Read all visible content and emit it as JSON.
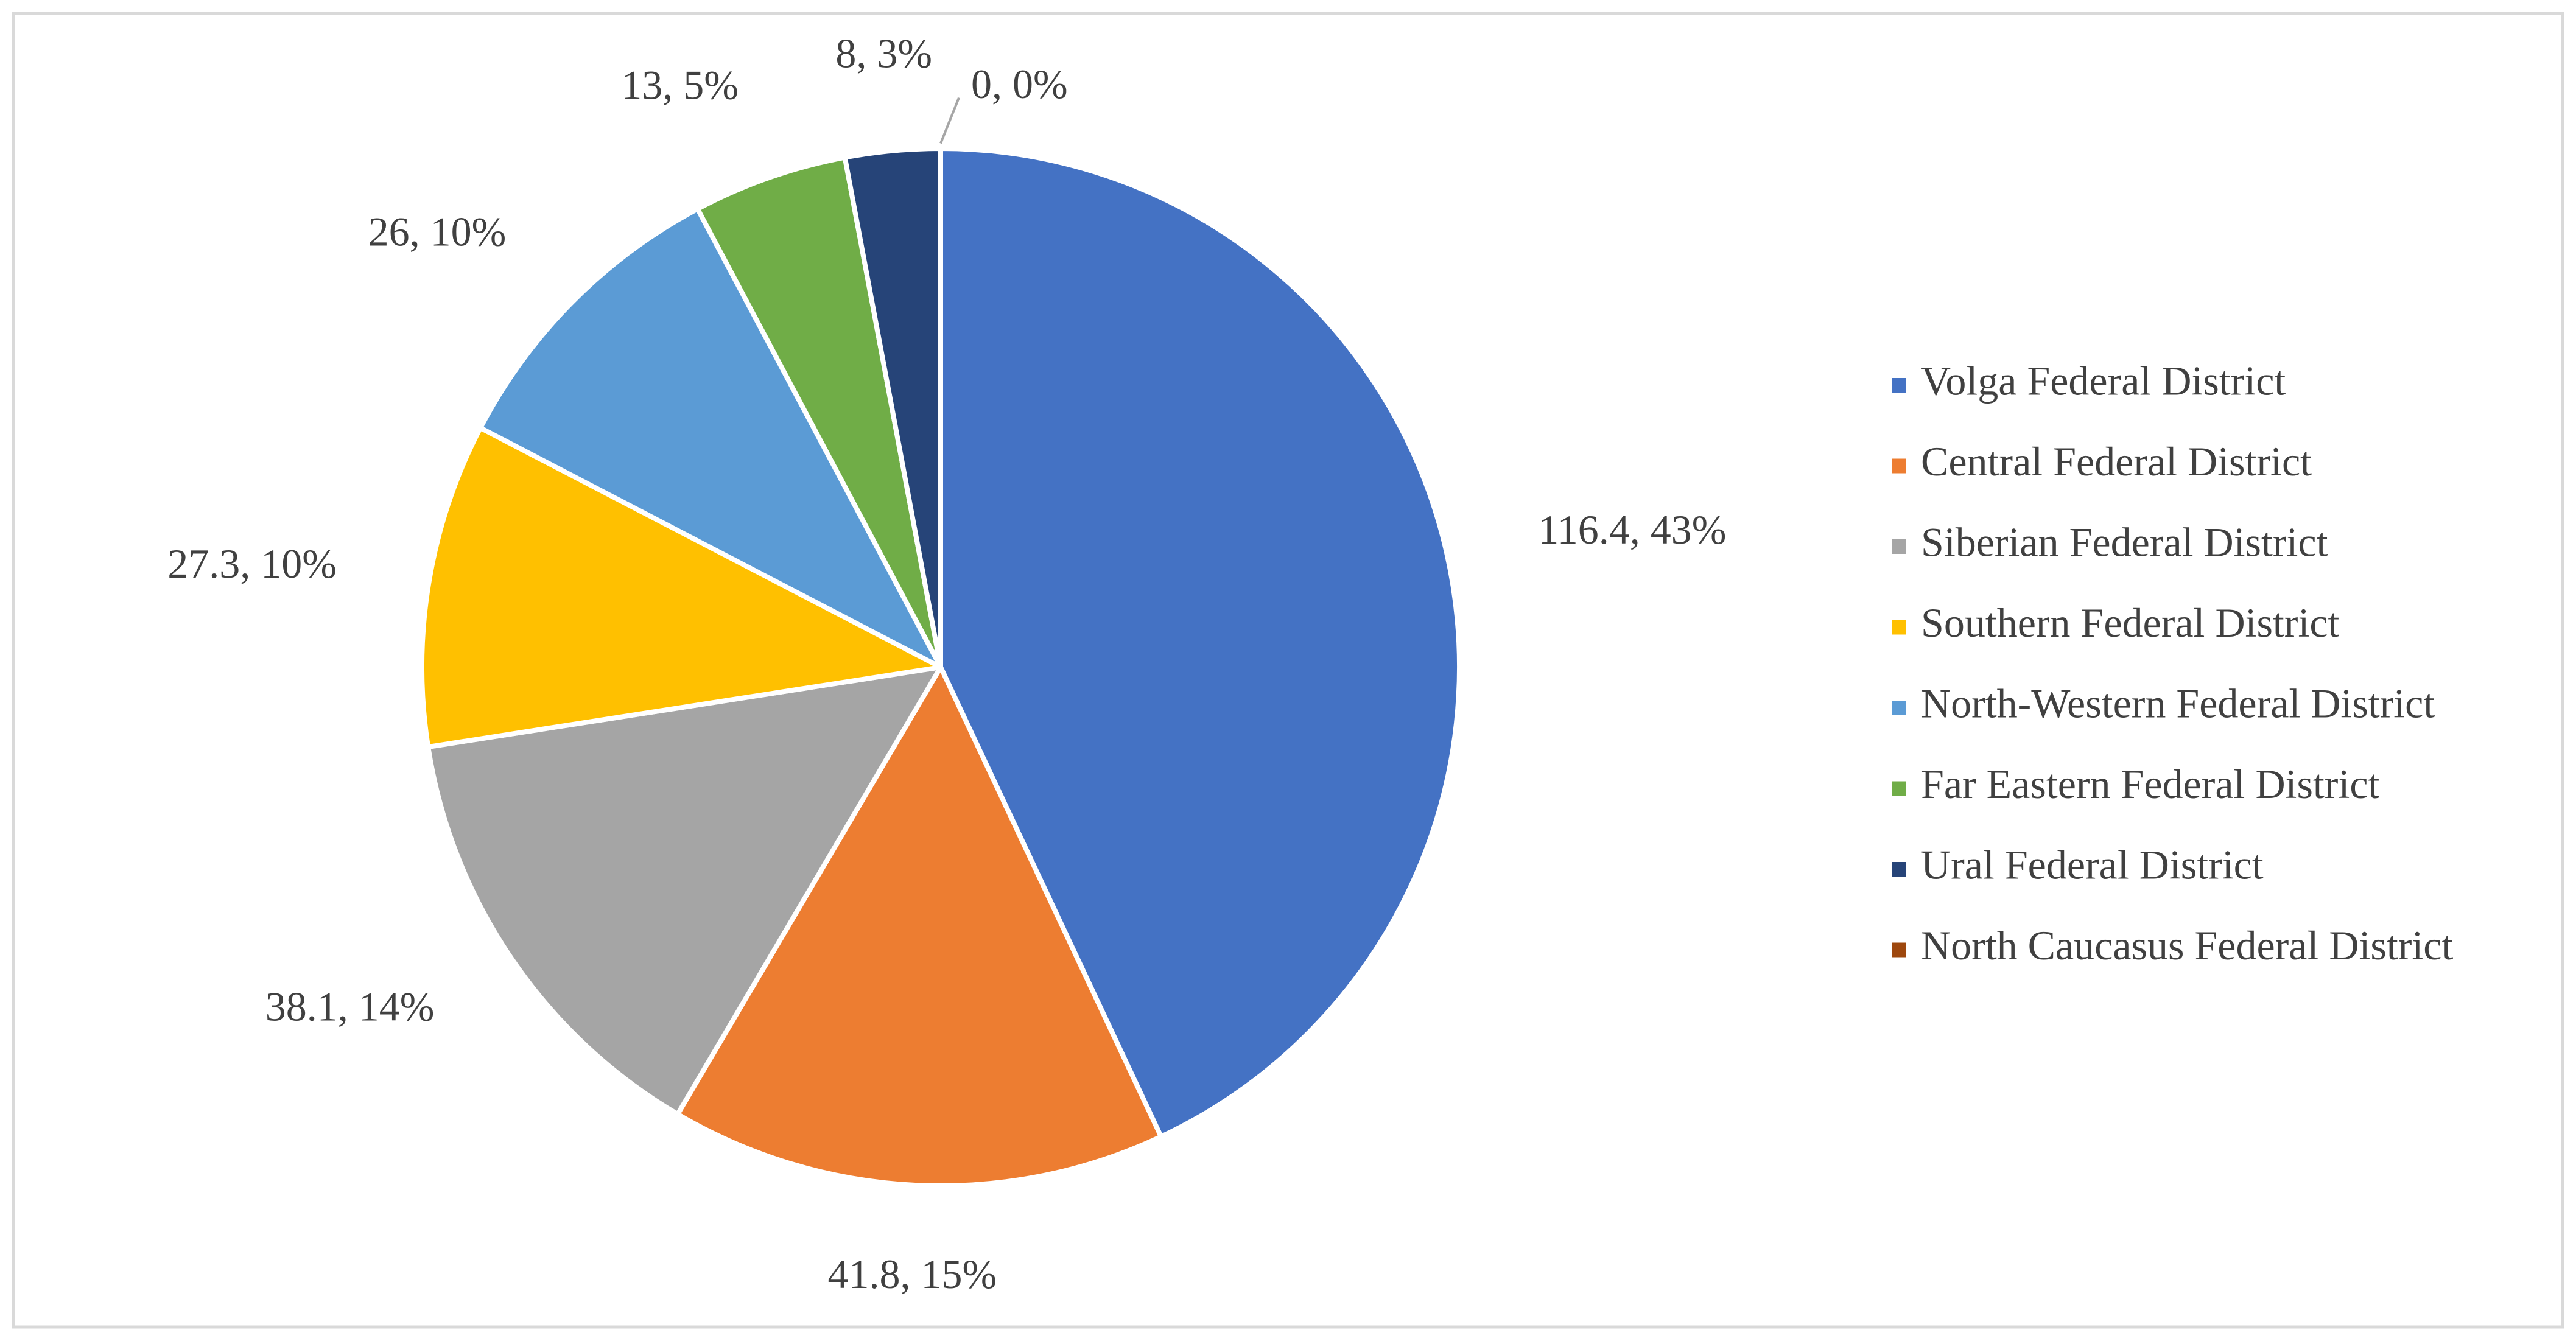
{
  "chart_data": {
    "type": "pie",
    "categories": [
      "Volga Federal District",
      "Central Federal District",
      "Siberian Federal District",
      "Southern Federal District",
      "North-Western Federal District",
      "Far Eastern Federal District",
      "Ural Federal District",
      "North Caucasus Federal District"
    ],
    "values": [
      116.4,
      41.8,
      38.1,
      27.3,
      26,
      13,
      8,
      0
    ],
    "value_labels": [
      "116.4, 43%",
      "41.8, 15%",
      "38.1, 14%",
      "27.3, 10%",
      "26, 10%",
      "13, 5%",
      "8, 3%",
      "0, 0%"
    ],
    "colors": [
      "#4472c4",
      "#ed7d31",
      "#a5a5a5",
      "#ffc000",
      "#5b9bd5",
      "#70ad47",
      "#264478",
      "#9e480e"
    ],
    "legend": "right"
  }
}
